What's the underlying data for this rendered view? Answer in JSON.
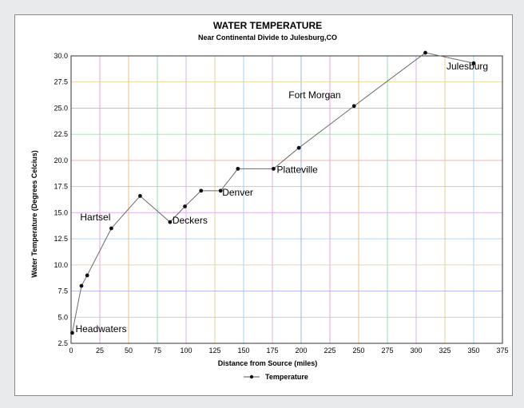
{
  "chart_data": {
    "type": "line",
    "title": "WATER TEMPERATURE",
    "subtitle": "Near Continental Divide to Julesburg,CO",
    "xlabel": "Distance from Source (miles)",
    "ylabel": "Water Temperature (Degrees Celcius)",
    "xlim": [
      0,
      375
    ],
    "ylim": [
      2.5,
      30.0
    ],
    "x_ticks": [
      "0",
      "25",
      "50",
      "75",
      "100",
      "125",
      "150",
      "175",
      "200",
      "225",
      "250",
      "275",
      "300",
      "325",
      "350",
      "375"
    ],
    "y_ticks": [
      "2.5",
      "5.0",
      "7.5",
      "10.0",
      "12.5",
      "15.0",
      "17.5",
      "20.0",
      "22.5",
      "25.0",
      "27.5",
      "30.0"
    ],
    "grid": true,
    "legend_position": "bottom-center",
    "series": [
      {
        "name": "Temperature",
        "x": [
          1,
          9,
          14,
          35,
          60,
          86,
          99,
          113,
          130,
          145,
          176,
          198,
          246,
          308,
          350
        ],
        "y": [
          3.5,
          8.0,
          9.0,
          13.5,
          16.6,
          14.1,
          15.6,
          17.1,
          17.1,
          19.2,
          19.2,
          21.2,
          25.2,
          30.3,
          29.3
        ]
      }
    ],
    "annotations": [
      {
        "text": "Headwaters",
        "x": 1,
        "y": 3.5
      },
      {
        "text": "Hartsel",
        "x": 35,
        "y": 13.5
      },
      {
        "text": "Deckers",
        "x": 86,
        "y": 14.1
      },
      {
        "text": "Denver",
        "x": 130,
        "y": 17.1
      },
      {
        "text": "Platteville",
        "x": 176,
        "y": 19.2
      },
      {
        "text": "Fort Morgan",
        "x": 246,
        "y": 25.2
      },
      {
        "text": "Julesburg",
        "x": 350,
        "y": 29.3
      }
    ]
  }
}
